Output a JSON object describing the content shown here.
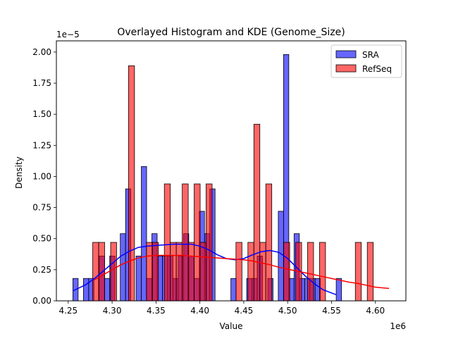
{
  "chart_data": {
    "type": "bar",
    "title": "Overlayed Histogram and KDE (Genome_Size)",
    "xlabel": "Value",
    "ylabel": "Density",
    "x_offset_text": "1e6",
    "y_offset_text": "1e−5",
    "xlim": [
      4.2365,
      4.6347
    ],
    "ylim": [
      0,
      2.09
    ],
    "xticks": [
      4.25,
      4.3,
      4.35,
      4.4,
      4.45,
      4.5,
      4.55,
      4.6
    ],
    "xtick_labels": [
      "4.25",
      "4.30",
      "4.35",
      "4.40",
      "4.45",
      "4.50",
      "4.55",
      "4.60"
    ],
    "yticks": [
      0.0,
      0.25,
      0.5,
      0.75,
      1.0,
      1.25,
      1.5,
      1.75,
      2.0
    ],
    "ytick_labels": [
      "0.00",
      "0.25",
      "0.50",
      "0.75",
      "1.00",
      "1.25",
      "1.50",
      "1.75",
      "2.00"
    ],
    "legend_position": "top-right",
    "grid": false,
    "colors": {
      "SRA": "#0000ff",
      "RefSeq": "#ff0000"
    },
    "series": [
      {
        "name": "SRA",
        "kind": "histogram",
        "bin_start": 4.2553,
        "bin_width": 0.006,
        "values": [
          0.18,
          0,
          0.18,
          0.18,
          0,
          0.36,
          0.18,
          0.36,
          0,
          0.54,
          0.9,
          0,
          0.36,
          1.08,
          0.18,
          0.54,
          0.36,
          0.36,
          0.36,
          0.18,
          0.36,
          0.54,
          0.36,
          0.18,
          0.72,
          0.54,
          0.9,
          0,
          0,
          0,
          0.18,
          0,
          0,
          0.18,
          0.18,
          0.36,
          0,
          0.18,
          0,
          0.72,
          1.98,
          0.18,
          0.54,
          0.18,
          0.18,
          0.18,
          0.18,
          0,
          0,
          0,
          0.18
        ]
      },
      {
        "name": "RefSeq",
        "kind": "histogram",
        "bin_start": 4.2779,
        "bin_width": 0.0068,
        "values": [
          0.47,
          0.47,
          0,
          0.47,
          0,
          0,
          1.89,
          0,
          0,
          0.47,
          0.47,
          0,
          0.94,
          0.47,
          0.47,
          0.94,
          0.47,
          0.94,
          0.47,
          0.94,
          0,
          0,
          0,
          0,
          0.47,
          0,
          0.47,
          1.42,
          0.47,
          0.94,
          0,
          0,
          0.47,
          0,
          0.47,
          0,
          0.47,
          0,
          0.47,
          0,
          0,
          0,
          0,
          0,
          0.47,
          0,
          0.47,
          0
        ]
      },
      {
        "name": "SRA KDE",
        "kind": "kde",
        "x": [
          4.2553,
          4.27,
          4.28,
          4.29,
          4.3,
          4.31,
          4.32,
          4.33,
          4.34,
          4.35,
          4.36,
          4.37,
          4.38,
          4.39,
          4.4,
          4.41,
          4.42,
          4.43,
          4.44,
          4.45,
          4.46,
          4.47,
          4.48,
          4.49,
          4.5,
          4.51,
          4.52,
          4.53,
          4.54,
          4.555
        ],
        "y": [
          0.08,
          0.13,
          0.18,
          0.24,
          0.3,
          0.36,
          0.4,
          0.43,
          0.44,
          0.445,
          0.45,
          0.455,
          0.455,
          0.455,
          0.44,
          0.41,
          0.37,
          0.34,
          0.33,
          0.34,
          0.37,
          0.395,
          0.405,
          0.39,
          0.34,
          0.27,
          0.2,
          0.14,
          0.09,
          0.05
        ]
      },
      {
        "name": "RefSeq KDE",
        "kind": "kde",
        "x": [
          4.28,
          4.29,
          4.3,
          4.31,
          4.32,
          4.33,
          4.34,
          4.35,
          4.36,
          4.37,
          4.38,
          4.39,
          4.4,
          4.41,
          4.42,
          4.43,
          4.44,
          4.45,
          4.46,
          4.47,
          4.48,
          4.49,
          4.5,
          4.51,
          4.52,
          4.53,
          4.54,
          4.55,
          4.56,
          4.57,
          4.58,
          4.59,
          4.6,
          4.6155
        ],
        "y": [
          0.17,
          0.21,
          0.25,
          0.29,
          0.32,
          0.345,
          0.36,
          0.365,
          0.365,
          0.365,
          0.365,
          0.36,
          0.355,
          0.35,
          0.345,
          0.34,
          0.335,
          0.33,
          0.32,
          0.305,
          0.29,
          0.27,
          0.255,
          0.24,
          0.225,
          0.21,
          0.195,
          0.18,
          0.165,
          0.15,
          0.14,
          0.125,
          0.11,
          0.1
        ]
      }
    ]
  }
}
